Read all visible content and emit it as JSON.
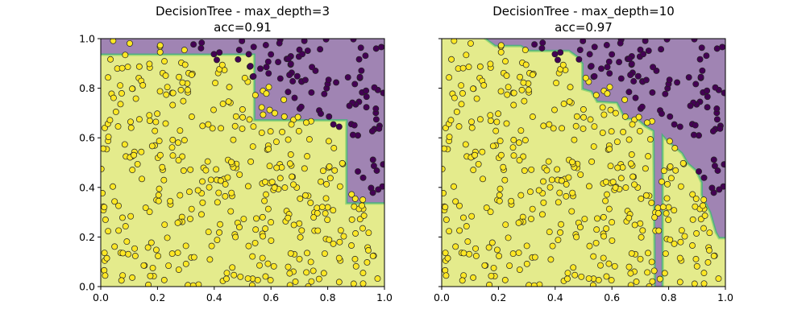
{
  "chart_data": [
    {
      "type": "scatter",
      "title": "DecisionTree - max_depth=3",
      "subtitle": "acc=0.91",
      "xlim": [
        0,
        1
      ],
      "ylim": [
        0,
        1
      ],
      "xticks": [
        "0.0",
        "0.2",
        "0.4",
        "0.6",
        "0.8",
        "1.0"
      ],
      "yticks": [
        "0.0",
        "0.2",
        "0.4",
        "0.6",
        "0.8",
        "1.0"
      ],
      "grid": false,
      "class_colors": {
        "0": "#440154",
        "1": "#fde725"
      },
      "region_colors": {
        "0": "#a084b3",
        "1": "#e4eb8c"
      },
      "class0_region": [
        [
          0,
          0.94
        ],
        [
          0.545,
          0.94
        ],
        [
          0.545,
          0.675
        ],
        [
          0.87,
          0.675
        ],
        [
          0.87,
          0.34
        ],
        [
          1,
          0.34
        ],
        [
          1,
          1
        ],
        [
          0,
          1
        ]
      ]
    },
    {
      "type": "scatter",
      "title": "DecisionTree - max_depth=10",
      "subtitle": "acc=0.97",
      "xlim": [
        0,
        1
      ],
      "ylim": [
        0,
        1
      ],
      "xticks": [
        "0.0",
        "0.2",
        "0.4",
        "0.6",
        "0.8",
        "1.0"
      ],
      "yticks": [],
      "grid": false,
      "class_colors": {
        "0": "#440154",
        "1": "#fde725"
      },
      "region_colors": {
        "0": "#a084b3",
        "1": "#e4eb8c"
      },
      "class0_region": [
        [
          0.16,
          1
        ],
        [
          0.19,
          0.975
        ],
        [
          0.28,
          0.975
        ],
        [
          0.31,
          0.955
        ],
        [
          0.45,
          0.955
        ],
        [
          0.48,
          0.93
        ],
        [
          0.5,
          0.9
        ],
        [
          0.5,
          0.8
        ],
        [
          0.53,
          0.79
        ],
        [
          0.55,
          0.75
        ],
        [
          0.62,
          0.745
        ],
        [
          0.64,
          0.7
        ],
        [
          0.65,
          0.68
        ],
        [
          0.69,
          0.68
        ],
        [
          0.72,
          0.65
        ],
        [
          0.75,
          0.63
        ],
        [
          0.755,
          0
        ],
        [
          0.775,
          0
        ],
        [
          0.775,
          0.62
        ],
        [
          0.79,
          0.6
        ],
        [
          0.85,
          0.54
        ],
        [
          0.87,
          0.5
        ],
        [
          0.9,
          0.47
        ],
        [
          0.92,
          0.42
        ],
        [
          0.92,
          0.37
        ],
        [
          0.95,
          0.3
        ],
        [
          0.97,
          0.22
        ],
        [
          0.98,
          0.2
        ],
        [
          1,
          0.2
        ],
        [
          1,
          1
        ]
      ]
    }
  ]
}
